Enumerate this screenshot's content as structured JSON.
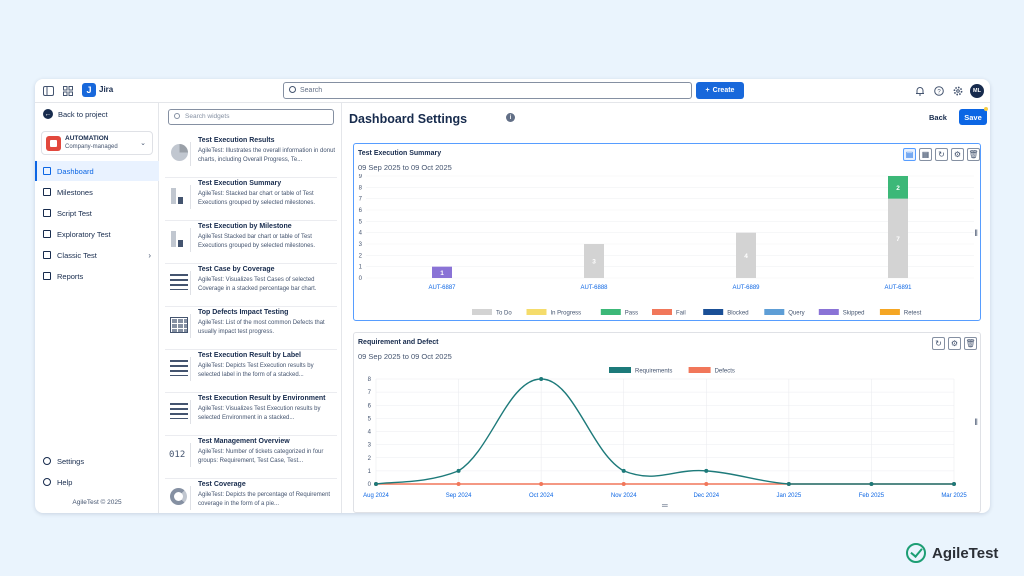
{
  "topbar": {
    "app_name": "Jira",
    "search_placeholder": "Search",
    "create_label": "Create",
    "avatar_initials": "ML"
  },
  "sidebar": {
    "back_label": "Back to project",
    "project_name": "AUTOMATION",
    "project_type": "Company-managed",
    "items": [
      {
        "label": "Dashboard",
        "icon": "grid-icon"
      },
      {
        "label": "Milestones",
        "icon": "flag-icon"
      },
      {
        "label": "Script Test",
        "icon": "script-icon"
      },
      {
        "label": "Exploratory Test",
        "icon": "grid-icon"
      },
      {
        "label": "Classic Test",
        "icon": "list-icon"
      },
      {
        "label": "Reports",
        "icon": "chart-icon"
      }
    ],
    "settings_label": "Settings",
    "help_label": "Help",
    "copyright": "AgileTest © 2025"
  },
  "widgets": {
    "search_placeholder": "Search widgets",
    "items": [
      {
        "title": "Test Execution Results",
        "desc": "AgileTest: Illustrates the overall information in donut charts, including Overall Progress, Te..."
      },
      {
        "title": "Test Execution Summary",
        "desc": "AgileTest: Stacked bar chart or table of Test Executions grouped by selected milestones."
      },
      {
        "title": "Test Execution by Milestone",
        "desc": "AgileTest Stacked bar chart or table of Test Executions grouped by selected milestones."
      },
      {
        "title": "Test Case by Coverage",
        "desc": "AgileTest: Visualizes Test Cases of selected Coverage in a stacked percentage bar chart."
      },
      {
        "title": "Top Defects Impact Testing",
        "desc": "AgileTest: List of the most common Defects that usually impact test progress."
      },
      {
        "title": "Test Execution Result by Label",
        "desc": "AgileTest: Depicts Test Execution results by selected label in the form of a stacked..."
      },
      {
        "title": "Test Execution Result by Environment",
        "desc": "AgileTest: Visualizes Test Execution results by selected Environment in a stacked..."
      },
      {
        "title": "Test Management Overview",
        "desc": "AgileTest: Number of tickets categorized in four groups: Requirement, Test Case, Test..."
      },
      {
        "title": "Test Coverage",
        "desc": "AgileTest: Depicts the percentage of Requirement coverage in the form of a pie..."
      }
    ],
    "thumb_number": "012"
  },
  "main": {
    "title": "Dashboard Settings",
    "back_label": "Back",
    "save_label": "Save"
  },
  "chart_data": [
    {
      "type": "bar",
      "title": "Test Execution Summary",
      "subtitle": "09 Sep 2025 to 09 Oct 2025",
      "categories": [
        "AUT-6887",
        "AUT-6888",
        "AUT-6889",
        "AUT-6891"
      ],
      "ylim": [
        0,
        9
      ],
      "yticks": [
        0,
        1,
        2,
        3,
        4,
        5,
        6,
        7,
        8,
        9
      ],
      "series": [
        {
          "name": "To Do",
          "color": "#d3d3d3",
          "values": [
            0,
            3,
            4,
            7
          ]
        },
        {
          "name": "In Progress",
          "color": "#f5dc6b",
          "values": [
            0,
            0,
            0,
            0
          ]
        },
        {
          "name": "Pass",
          "color": "#3cb878",
          "values": [
            0,
            0,
            0,
            2
          ]
        },
        {
          "name": "Fail",
          "color": "#f1775a",
          "values": [
            0,
            0,
            0,
            0
          ]
        },
        {
          "name": "Blocked",
          "color": "#1a4f96",
          "values": [
            0,
            0,
            0,
            0
          ]
        },
        {
          "name": "Query",
          "color": "#5e9ed6",
          "values": [
            0,
            0,
            0,
            0
          ]
        },
        {
          "name": "Skipped",
          "color": "#8a73d6",
          "values": [
            1,
            0,
            0,
            0
          ]
        },
        {
          "name": "Retest",
          "color": "#f5a623",
          "values": [
            0,
            0,
            0,
            0
          ]
        }
      ],
      "legend": "bottom"
    },
    {
      "type": "line",
      "title": "Requirement and Defect",
      "subtitle": "09 Sep 2025 to 09 Oct 2025",
      "x": [
        "Aug 2024",
        "Sep 2024",
        "Oct 2024",
        "Nov 2024",
        "Dec 2024",
        "Jan 2025",
        "Feb 2025",
        "Mar 2025"
      ],
      "ylim": [
        0,
        8
      ],
      "yticks": [
        0,
        1,
        2,
        3,
        4,
        5,
        6,
        7,
        8
      ],
      "series": [
        {
          "name": "Requirements",
          "color": "#1d7a7a",
          "values": [
            0,
            1,
            8,
            1,
            1,
            0,
            0,
            0
          ]
        },
        {
          "name": "Defects",
          "color": "#f1775a",
          "values": [
            0,
            0,
            0,
            0,
            0,
            0,
            0,
            0
          ]
        }
      ],
      "legend": "top"
    }
  ]
}
